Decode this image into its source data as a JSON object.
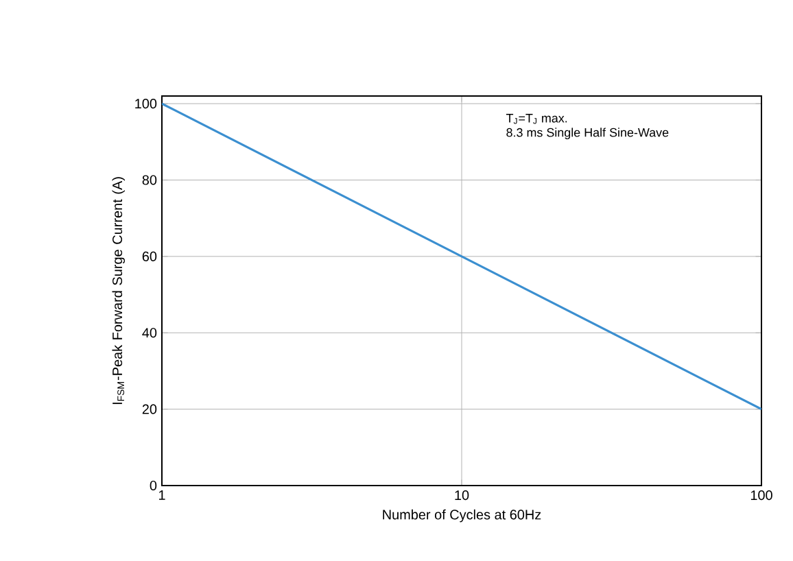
{
  "chart_data": {
    "type": "line",
    "xlabel": "Number of Cycles at 60Hz",
    "ylabel": "I$_{FSM}$-Peak Forward Surge Current (A)",
    "annotations": [
      "T$_{J}$=T$_{J}$ max.",
      "8.3 ms Single Half Sine-Wave"
    ],
    "x": [
      1,
      10,
      100
    ],
    "series": [
      {
        "color": "#3b8fd0",
        "values": [
          100,
          60,
          20
        ]
      }
    ],
    "log": "x",
    "xlim": [
      1,
      100
    ],
    "xticks": [
      1,
      10,
      100
    ],
    "ylim": [
      0,
      102
    ],
    "yticks": [
      0,
      20,
      40,
      60,
      80,
      100
    ],
    "grid": true,
    "marker": "none",
    "line_style": "solid"
  }
}
